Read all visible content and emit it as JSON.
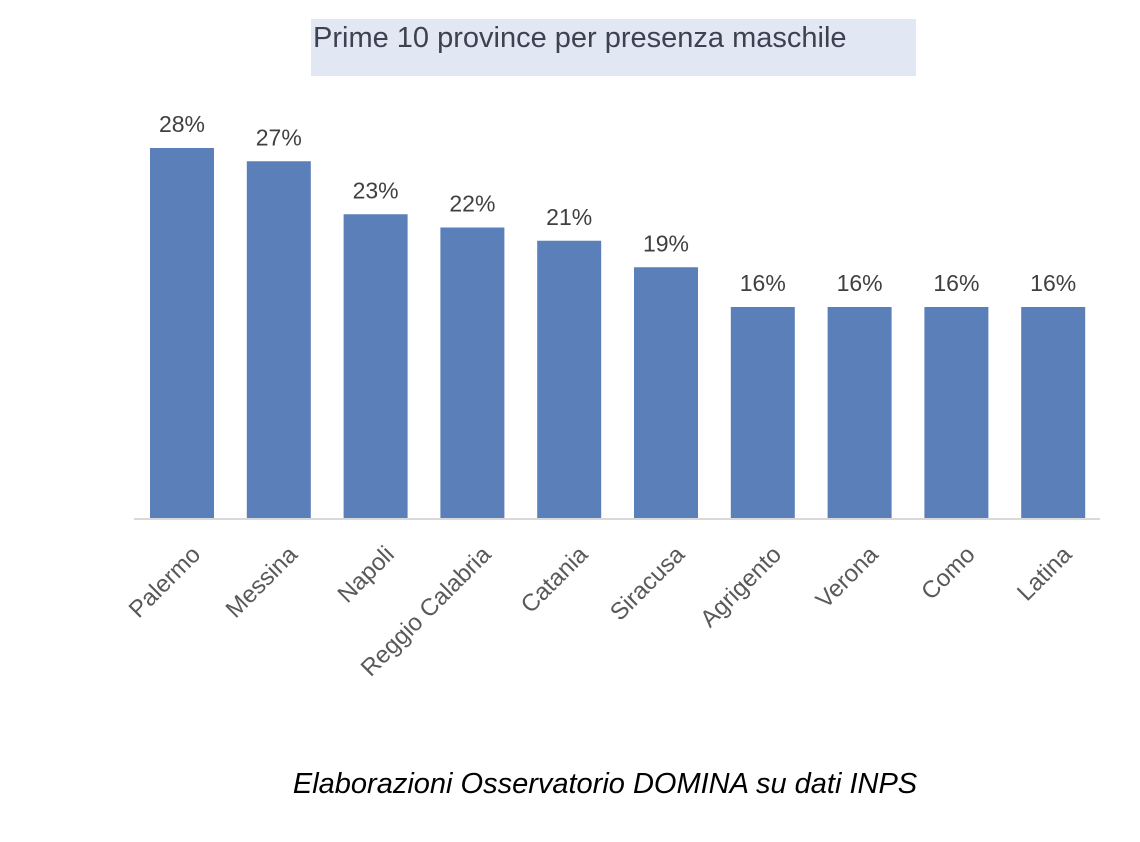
{
  "chart_data": {
    "type": "bar",
    "title": "Prime 10 province per presenza maschile",
    "categories": [
      "Palermo",
      "Messina",
      "Napoli",
      "Reggio Calabria",
      "Catania",
      "Siracusa",
      "Agrigento",
      "Verona",
      "Como",
      "Latina"
    ],
    "values": [
      28,
      27,
      23,
      22,
      21,
      19,
      16,
      16,
      16,
      16
    ],
    "value_labels": [
      "28%",
      "27%",
      "23%",
      "22%",
      "21%",
      "19%",
      "16%",
      "16%",
      "16%",
      "16%"
    ],
    "unit": "%",
    "ylim": [
      0,
      28
    ],
    "grid": false,
    "legend": "none",
    "bar_color": "#5b7fb8",
    "axis_color": "#d9d9d9",
    "label_color": "#404040"
  },
  "footer": {
    "source": "Elaborazioni Osservatorio DOMINA su dati INPS"
  }
}
